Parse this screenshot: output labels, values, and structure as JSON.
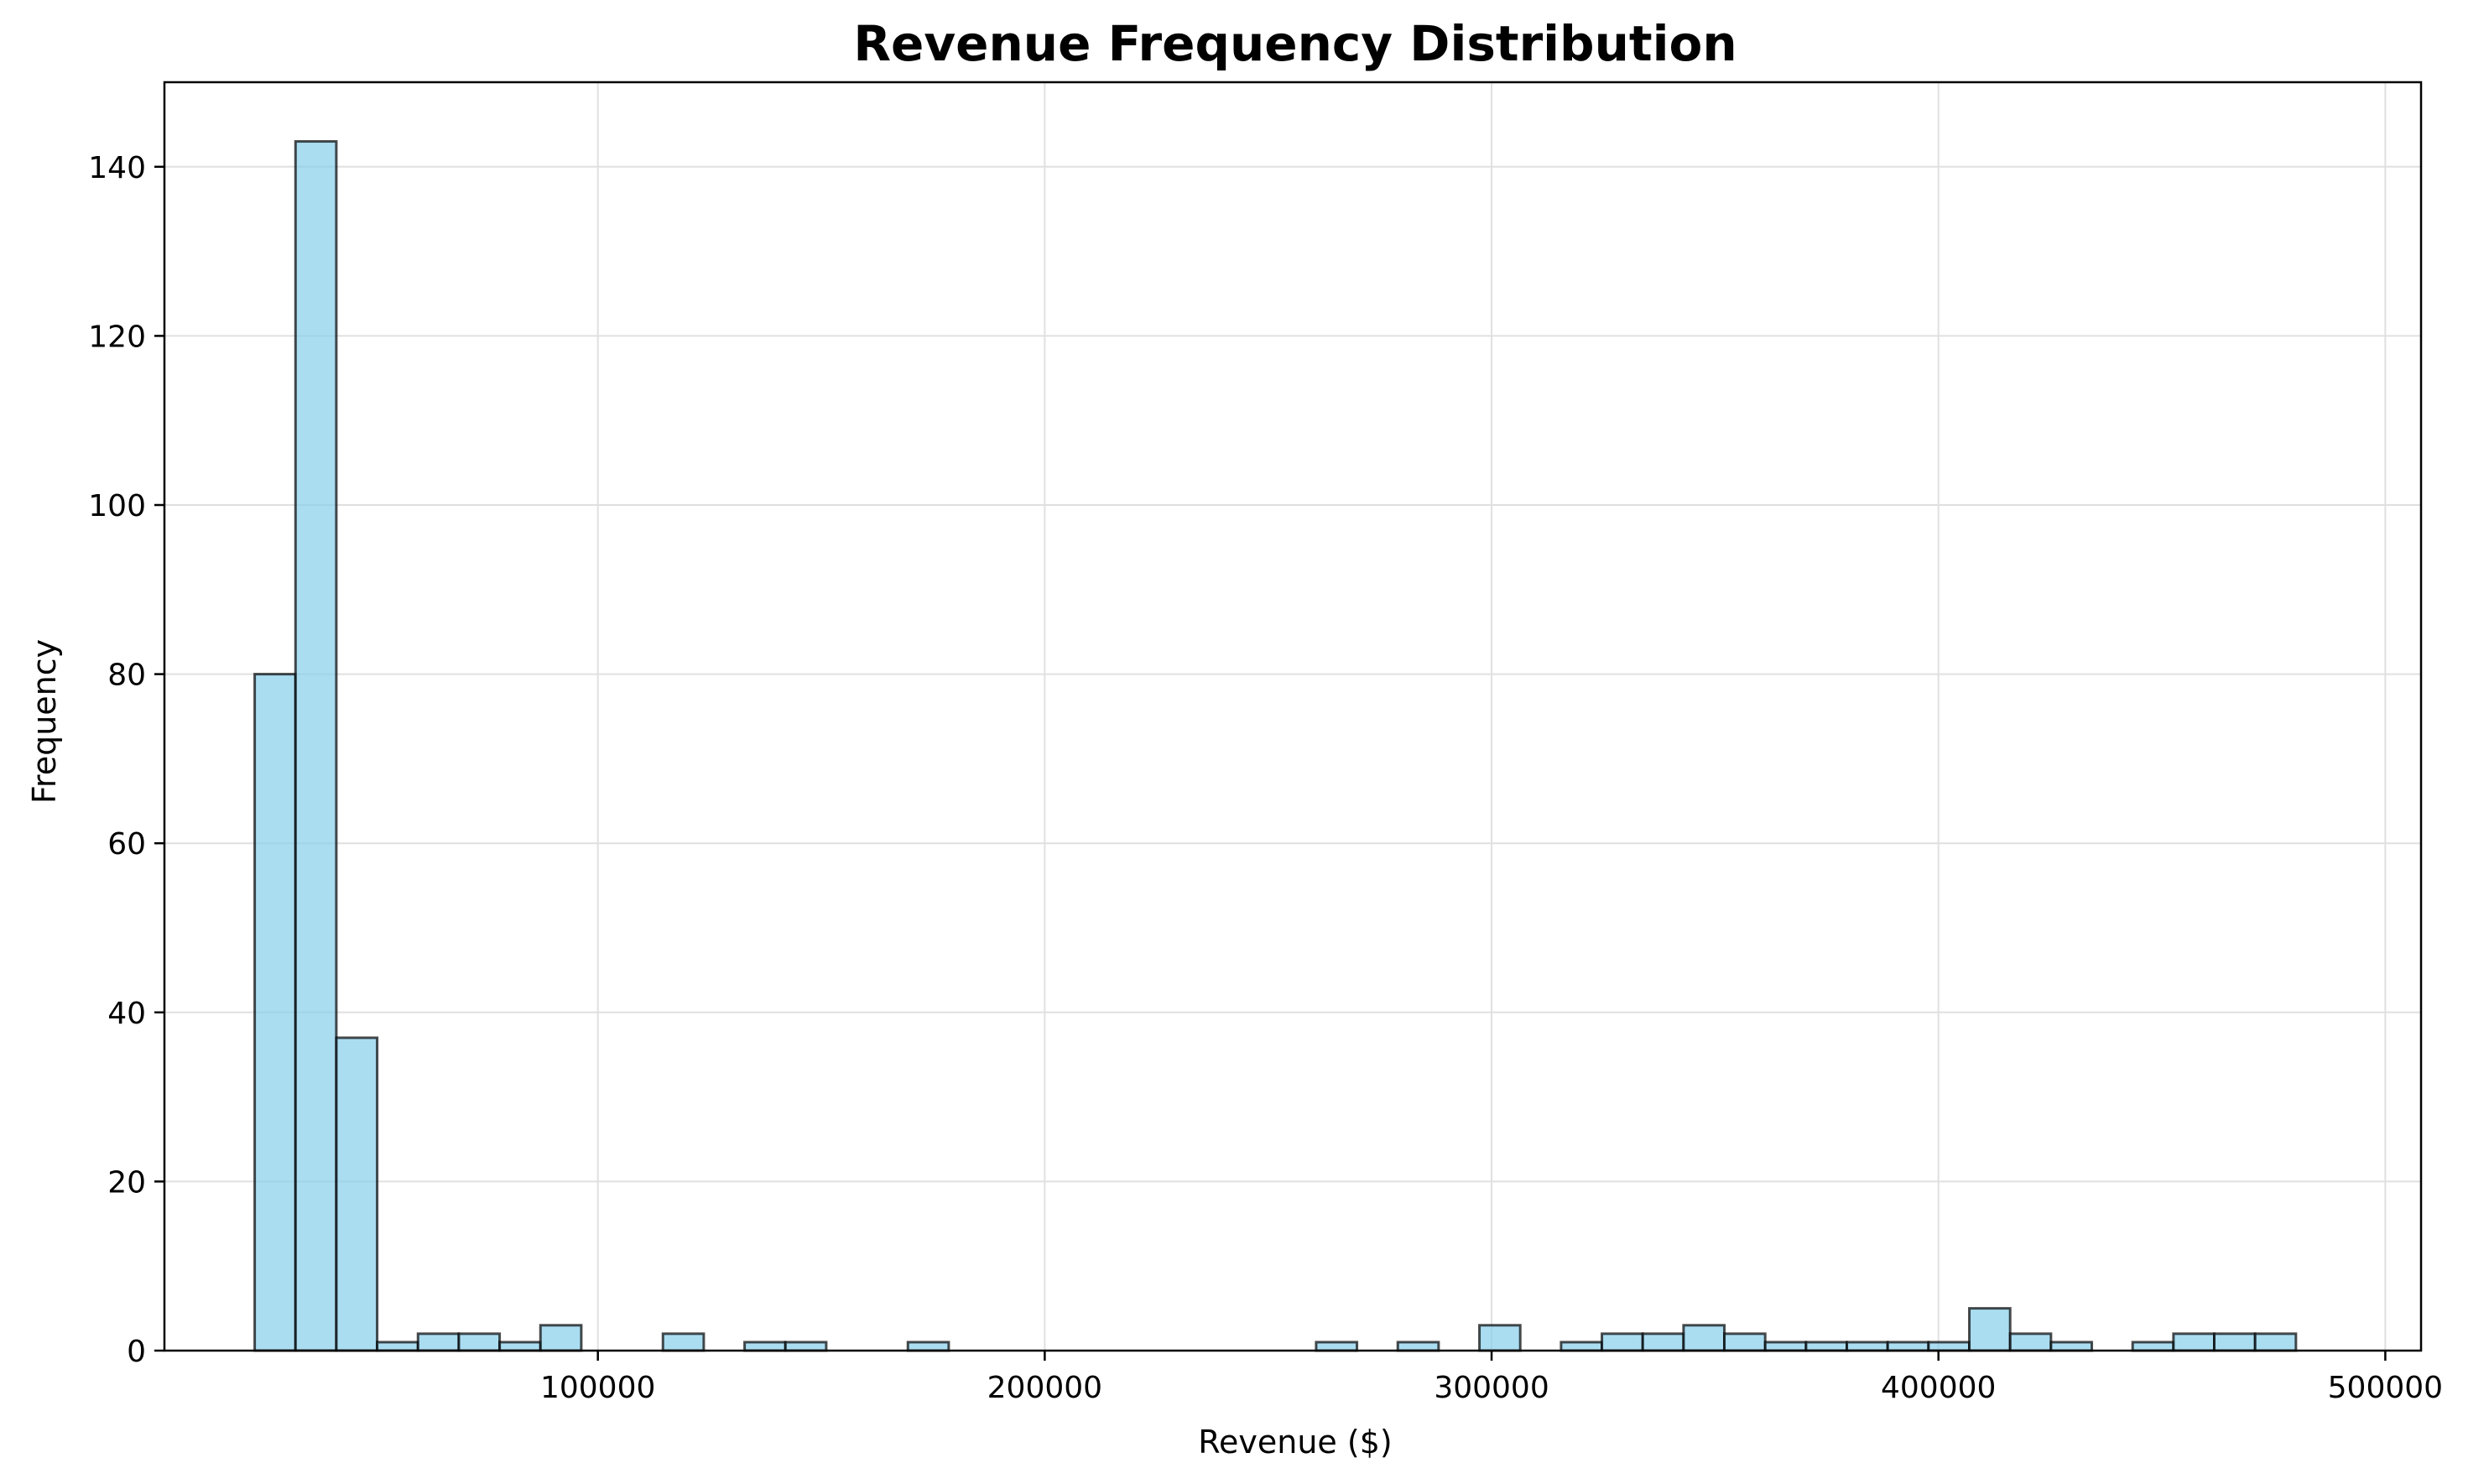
{
  "chart_data": {
    "type": "bar",
    "title": "Revenue Frequency Distribution",
    "xlabel": "Revenue ($)",
    "ylabel": "Frequency",
    "xlim": [
      3000,
      508000
    ],
    "ylim": [
      0,
      150
    ],
    "xticks": [
      100000,
      200000,
      300000,
      400000,
      500000
    ],
    "yticks": [
      0,
      20,
      40,
      60,
      80,
      100,
      120,
      140
    ],
    "grid": true,
    "bin_width": 9136,
    "bins": [
      {
        "x0": 23200,
        "x1": 32336,
        "count": 80
      },
      {
        "x0": 32336,
        "x1": 41472,
        "count": 143
      },
      {
        "x0": 41472,
        "x1": 50608,
        "count": 37
      },
      {
        "x0": 50608,
        "x1": 59744,
        "count": 1
      },
      {
        "x0": 59744,
        "x1": 68880,
        "count": 2
      },
      {
        "x0": 68880,
        "x1": 78016,
        "count": 2
      },
      {
        "x0": 78016,
        "x1": 87152,
        "count": 1
      },
      {
        "x0": 87152,
        "x1": 96288,
        "count": 3
      },
      {
        "x0": 114560,
        "x1": 123696,
        "count": 2
      },
      {
        "x0": 132832,
        "x1": 141968,
        "count": 1
      },
      {
        "x0": 141968,
        "x1": 151104,
        "count": 1
      },
      {
        "x0": 169376,
        "x1": 178512,
        "count": 1
      },
      {
        "x0": 260736,
        "x1": 269872,
        "count": 1
      },
      {
        "x0": 279008,
        "x1": 288144,
        "count": 1
      },
      {
        "x0": 297280,
        "x1": 306416,
        "count": 3
      },
      {
        "x0": 315552,
        "x1": 324688,
        "count": 1
      },
      {
        "x0": 324688,
        "x1": 333824,
        "count": 2
      },
      {
        "x0": 333824,
        "x1": 342960,
        "count": 2
      },
      {
        "x0": 342960,
        "x1": 352096,
        "count": 3
      },
      {
        "x0": 352096,
        "x1": 361232,
        "count": 2
      },
      {
        "x0": 361232,
        "x1": 370368,
        "count": 1
      },
      {
        "x0": 370368,
        "x1": 379504,
        "count": 1
      },
      {
        "x0": 379504,
        "x1": 388640,
        "count": 1
      },
      {
        "x0": 388640,
        "x1": 397776,
        "count": 1
      },
      {
        "x0": 397776,
        "x1": 406912,
        "count": 1
      },
      {
        "x0": 406912,
        "x1": 416048,
        "count": 5
      },
      {
        "x0": 416048,
        "x1": 425184,
        "count": 2
      },
      {
        "x0": 425184,
        "x1": 434320,
        "count": 1
      },
      {
        "x0": 443456,
        "x1": 452592,
        "count": 1
      },
      {
        "x0": 452592,
        "x1": 461728,
        "count": 2
      },
      {
        "x0": 461728,
        "x1": 470864,
        "count": 2
      },
      {
        "x0": 470864,
        "x1": 480000,
        "count": 2
      }
    ],
    "colors": {
      "bar_fill": "#87ceeb",
      "bar_edge": "#000000",
      "grid": "#e0e0e0",
      "axis": "#000000"
    }
  }
}
